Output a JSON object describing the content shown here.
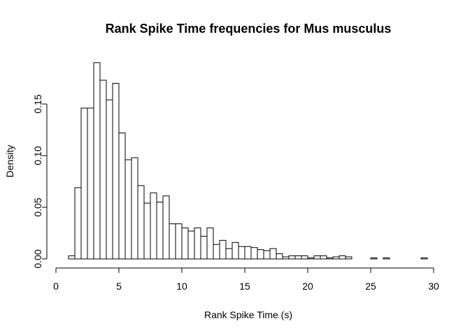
{
  "chart_data": {
    "type": "bar",
    "title": "Rank Spike Time frequencies for Mus musculus",
    "xlabel": "Rank Spike Time (s)",
    "ylabel": "Density",
    "xlim": [
      0,
      30
    ],
    "ylim": [
      0,
      0.19
    ],
    "x_ticks": [
      0,
      5,
      10,
      15,
      20,
      25,
      30
    ],
    "x_tick_labels": [
      "0",
      "5",
      "10",
      "15",
      "20",
      "25",
      "30"
    ],
    "y_ticks": [
      0.0,
      0.05,
      0.1,
      0.15
    ],
    "y_tick_labels": [
      "0.00",
      "0.05",
      "0.10",
      "0.15"
    ],
    "bin_width": 0.5,
    "bin_starts": [
      1.0,
      1.5,
      2.0,
      2.5,
      3.0,
      3.5,
      4.0,
      4.5,
      5.0,
      5.5,
      6.0,
      6.5,
      7.0,
      7.5,
      8.0,
      8.5,
      9.0,
      9.5,
      10.0,
      10.5,
      11.0,
      11.5,
      12.0,
      12.5,
      13.0,
      13.5,
      14.0,
      14.5,
      15.0,
      15.5,
      16.0,
      16.5,
      17.0,
      17.5,
      18.0,
      18.5,
      19.0,
      19.5,
      20.0,
      20.5,
      21.0,
      21.5,
      22.0,
      22.5,
      23.0,
      23.5,
      24.0,
      24.5,
      25.0,
      25.5,
      26.0,
      26.5,
      27.0,
      27.5,
      28.0,
      28.5,
      29.0
    ],
    "values": [
      0.003,
      0.069,
      0.146,
      0.146,
      0.19,
      0.173,
      0.154,
      0.17,
      0.122,
      0.096,
      0.098,
      0.071,
      0.054,
      0.064,
      0.055,
      0.061,
      0.034,
      0.034,
      0.03,
      0.027,
      0.03,
      0.022,
      0.03,
      0.014,
      0.018,
      0.01,
      0.016,
      0.012,
      0.012,
      0.011,
      0.009,
      0.008,
      0.01,
      0.005,
      0.002,
      0.003,
      0.003,
      0.003,
      0.001,
      0.003,
      0.003,
      0.001,
      0.002,
      0.003,
      0.002,
      0.0,
      0.0,
      0.0,
      0.001,
      0.0,
      0.001,
      0.0,
      0.0,
      0.0,
      0.0,
      0.0,
      0.001
    ],
    "grid": false
  }
}
